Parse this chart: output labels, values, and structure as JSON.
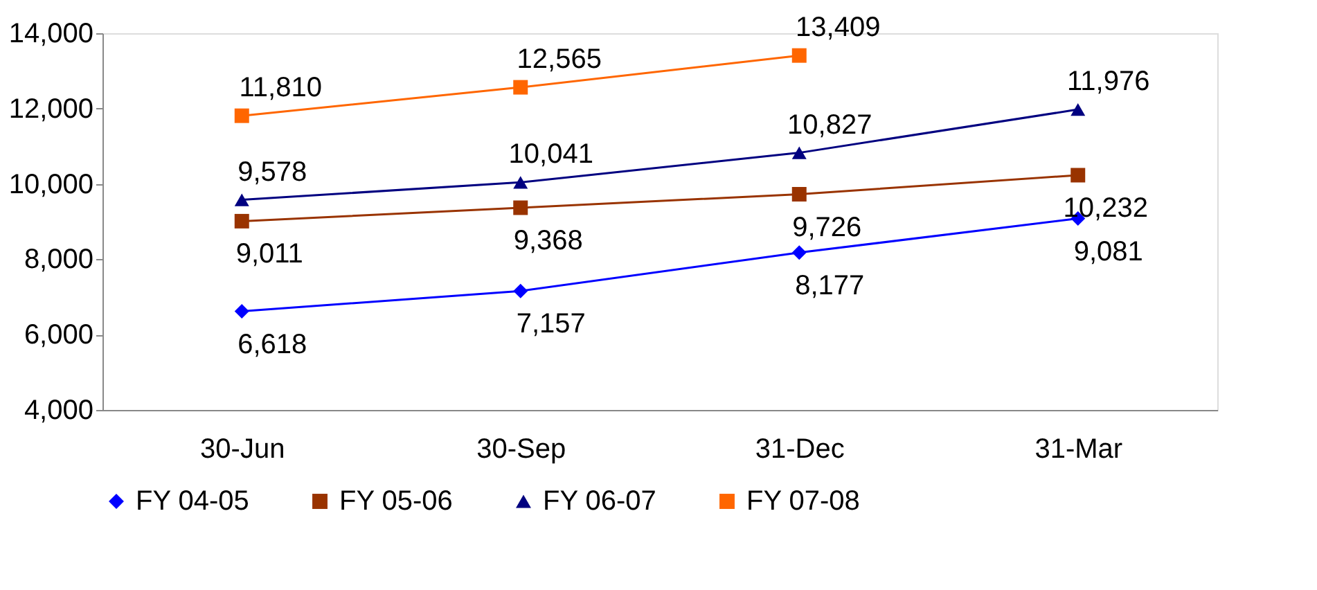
{
  "chart_data": {
    "type": "line",
    "categories": [
      "30-Jun",
      "30-Sep",
      "31-Dec",
      "31-Mar"
    ],
    "series": [
      {
        "name": "FY 04-05",
        "color": "#0000ff",
        "marker": "diamond",
        "values": [
          6618,
          7157,
          8177,
          9081
        ],
        "value_labels": [
          "6,618",
          "7,157",
          "8,177",
          "9,081"
        ]
      },
      {
        "name": "FY 05-06",
        "color": "#993300",
        "marker": "square",
        "values": [
          9011,
          9368,
          9726,
          10232
        ],
        "value_labels": [
          "9,011",
          "9,368",
          "9,726",
          "10,232"
        ]
      },
      {
        "name": "FY 06-07",
        "color": "#000080",
        "marker": "triangle",
        "values": [
          9578,
          10041,
          10827,
          11976
        ],
        "value_labels": [
          "9,578",
          "10,041",
          "10,827",
          "11,976"
        ]
      },
      {
        "name": "FY 07-08",
        "color": "#ff6600",
        "marker": "square",
        "values": [
          11810,
          12565,
          13409,
          null
        ],
        "value_labels": [
          "11,810",
          "12,565",
          "13,409",
          null
        ]
      }
    ],
    "ylim": [
      4000,
      14000
    ],
    "yticks": [
      {
        "value": 4000,
        "label": "4,000"
      },
      {
        "value": 6000,
        "label": "6,000"
      },
      {
        "value": 8000,
        "label": "8,000"
      },
      {
        "value": 10000,
        "label": "10,000"
      },
      {
        "value": 12000,
        "label": "12,000"
      },
      {
        "value": 14000,
        "label": "14,000"
      }
    ],
    "grid": false,
    "legend": "bottom",
    "line_style": "solid"
  }
}
